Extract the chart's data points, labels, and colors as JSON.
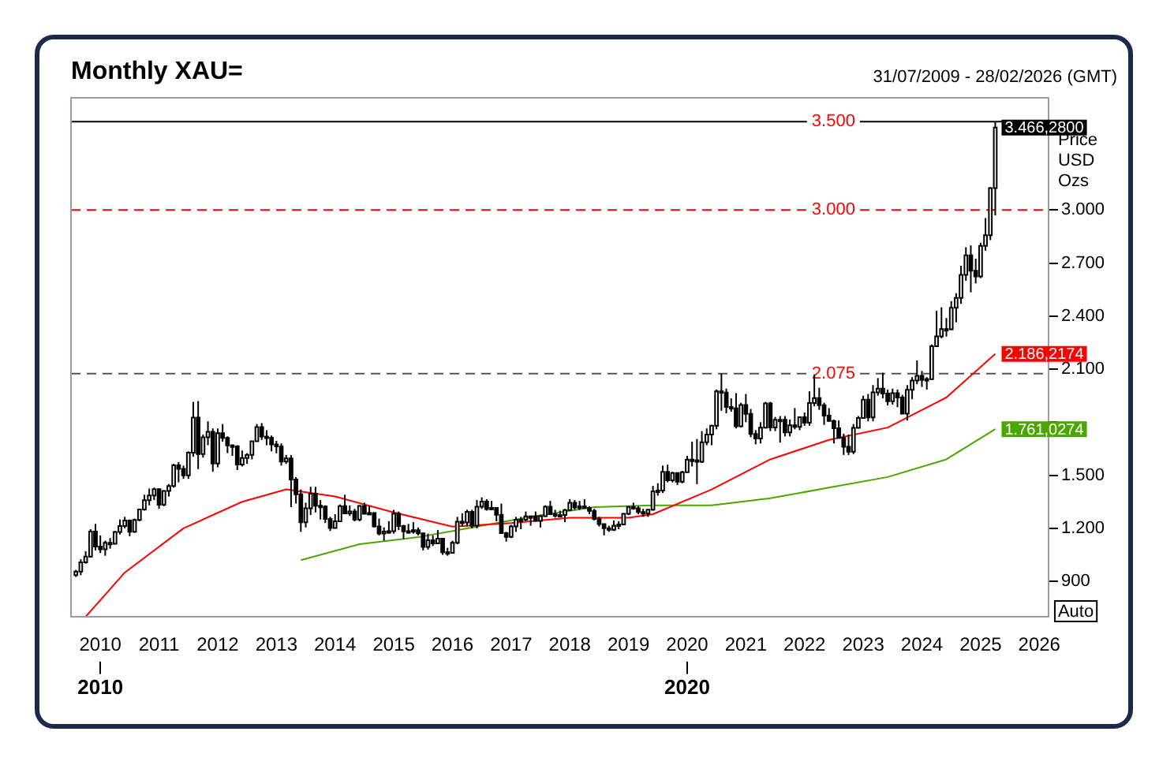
{
  "chart_data": {
    "type": "candlestick",
    "title": "Monthly XAU=",
    "subtitle": "31/07/2009 - 28/02/2026 (GMT)",
    "ylabel": "Price USD Ozs",
    "x": [
      "2009-08",
      "2009-09",
      "2009-10",
      "2009-11",
      "2009-12",
      "2010-01",
      "2010-02",
      "2010-03",
      "2010-04",
      "2010-05",
      "2010-06",
      "2010-07",
      "2010-08",
      "2010-09",
      "2010-10",
      "2010-11",
      "2010-12",
      "2011-01",
      "2011-02",
      "2011-03",
      "2011-04",
      "2011-05",
      "2011-06",
      "2011-07",
      "2011-08",
      "2011-09",
      "2011-10",
      "2011-11",
      "2011-12",
      "2012-01",
      "2012-02",
      "2012-03",
      "2012-04",
      "2012-05",
      "2012-06",
      "2012-07",
      "2012-08",
      "2012-09",
      "2012-10",
      "2012-11",
      "2012-12",
      "2013-01",
      "2013-02",
      "2013-03",
      "2013-04",
      "2013-05",
      "2013-06",
      "2013-07",
      "2013-08",
      "2013-09",
      "2013-10",
      "2013-11",
      "2013-12",
      "2014-01",
      "2014-02",
      "2014-03",
      "2014-04",
      "2014-05",
      "2014-06",
      "2014-07",
      "2014-08",
      "2014-09",
      "2014-10",
      "2014-11",
      "2014-12",
      "2015-01",
      "2015-02",
      "2015-03",
      "2015-04",
      "2015-05",
      "2015-06",
      "2015-07",
      "2015-08",
      "2015-09",
      "2015-10",
      "2015-11",
      "2015-12",
      "2016-01",
      "2016-02",
      "2016-03",
      "2016-04",
      "2016-05",
      "2016-06",
      "2016-07",
      "2016-08",
      "2016-09",
      "2016-10",
      "2016-11",
      "2016-12",
      "2017-01",
      "2017-02",
      "2017-03",
      "2017-04",
      "2017-05",
      "2017-06",
      "2017-07",
      "2017-08",
      "2017-09",
      "2017-10",
      "2017-11",
      "2017-12",
      "2018-01",
      "2018-02",
      "2018-03",
      "2018-04",
      "2018-05",
      "2018-06",
      "2018-07",
      "2018-08",
      "2018-09",
      "2018-10",
      "2018-11",
      "2018-12",
      "2019-01",
      "2019-02",
      "2019-03",
      "2019-04",
      "2019-05",
      "2019-06",
      "2019-07",
      "2019-08",
      "2019-09",
      "2019-10",
      "2019-11",
      "2019-12",
      "2020-01",
      "2020-02",
      "2020-03",
      "2020-04",
      "2020-05",
      "2020-06",
      "2020-07",
      "2020-08",
      "2020-09",
      "2020-10",
      "2020-11",
      "2020-12",
      "2021-01",
      "2021-02",
      "2021-03",
      "2021-04",
      "2021-05",
      "2021-06",
      "2021-07",
      "2021-08",
      "2021-09",
      "2021-10",
      "2021-11",
      "2021-12",
      "2022-01",
      "2022-02",
      "2022-03",
      "2022-04",
      "2022-05",
      "2022-06",
      "2022-07",
      "2022-08",
      "2022-09",
      "2022-10",
      "2022-11",
      "2022-12",
      "2023-01",
      "2023-02",
      "2023-03",
      "2023-04",
      "2023-05",
      "2023-06",
      "2023-07",
      "2023-08",
      "2023-09",
      "2023-10",
      "2023-11",
      "2023-12",
      "2024-01",
      "2024-02",
      "2024-03",
      "2024-04",
      "2024-05",
      "2024-06",
      "2024-07",
      "2024-08",
      "2024-09",
      "2024-10",
      "2024-11",
      "2024-12",
      "2025-01",
      "2025-02",
      "2025-03",
      "2025-04"
    ],
    "ohlc": [
      [
        935,
        965,
        925,
        955
      ],
      [
        955,
        1025,
        935,
        1008
      ],
      [
        1008,
        1070,
        1000,
        1040
      ],
      [
        1040,
        1195,
        1035,
        1182
      ],
      [
        1182,
        1225,
        1075,
        1097
      ],
      [
        1097,
        1160,
        1060,
        1081
      ],
      [
        1081,
        1130,
        1045,
        1118
      ],
      [
        1118,
        1145,
        1085,
        1113
      ],
      [
        1113,
        1185,
        1110,
        1180
      ],
      [
        1180,
        1250,
        1165,
        1213
      ],
      [
        1213,
        1265,
        1200,
        1244
      ],
      [
        1244,
        1250,
        1155,
        1181
      ],
      [
        1181,
        1255,
        1175,
        1248
      ],
      [
        1248,
        1310,
        1240,
        1307
      ],
      [
        1307,
        1390,
        1300,
        1359
      ],
      [
        1359,
        1425,
        1330,
        1386
      ],
      [
        1386,
        1430,
        1360,
        1421
      ],
      [
        1421,
        1425,
        1310,
        1333
      ],
      [
        1333,
        1415,
        1325,
        1411
      ],
      [
        1411,
        1450,
        1380,
        1439
      ],
      [
        1439,
        1565,
        1430,
        1556
      ],
      [
        1556,
        1575,
        1460,
        1536
      ],
      [
        1536,
        1555,
        1480,
        1500
      ],
      [
        1500,
        1635,
        1480,
        1628
      ],
      [
        1628,
        1915,
        1605,
        1826
      ],
      [
        1826,
        1920,
        1535,
        1620
      ],
      [
        1620,
        1730,
        1600,
        1715
      ],
      [
        1715,
        1805,
        1670,
        1746
      ],
      [
        1746,
        1765,
        1520,
        1566
      ],
      [
        1566,
        1765,
        1545,
        1738
      ],
      [
        1738,
        1790,
        1690,
        1711
      ],
      [
        1711,
        1720,
        1625,
        1669
      ],
      [
        1669,
        1675,
        1610,
        1664
      ],
      [
        1664,
        1670,
        1530,
        1561
      ],
      [
        1561,
        1640,
        1550,
        1598
      ],
      [
        1598,
        1625,
        1565,
        1615
      ],
      [
        1615,
        1695,
        1590,
        1692
      ],
      [
        1692,
        1790,
        1690,
        1773
      ],
      [
        1773,
        1795,
        1700,
        1719
      ],
      [
        1719,
        1755,
        1670,
        1713
      ],
      [
        1713,
        1725,
        1635,
        1675
      ],
      [
        1675,
        1695,
        1625,
        1664
      ],
      [
        1664,
        1680,
        1555,
        1578
      ],
      [
        1578,
        1615,
        1565,
        1596
      ],
      [
        1596,
        1615,
        1320,
        1476
      ],
      [
        1476,
        1490,
        1340,
        1393
      ],
      [
        1393,
        1420,
        1180,
        1234
      ],
      [
        1234,
        1345,
        1205,
        1313
      ],
      [
        1313,
        1435,
        1275,
        1396
      ],
      [
        1396,
        1435,
        1290,
        1328
      ],
      [
        1328,
        1360,
        1250,
        1323
      ],
      [
        1323,
        1330,
        1230,
        1253
      ],
      [
        1253,
        1265,
        1185,
        1202
      ],
      [
        1202,
        1280,
        1200,
        1240
      ],
      [
        1240,
        1335,
        1240,
        1326
      ],
      [
        1326,
        1390,
        1280,
        1284
      ],
      [
        1284,
        1330,
        1270,
        1296
      ],
      [
        1296,
        1310,
        1240,
        1250
      ],
      [
        1250,
        1330,
        1240,
        1327
      ],
      [
        1327,
        1345,
        1280,
        1282
      ],
      [
        1282,
        1325,
        1275,
        1287
      ],
      [
        1287,
        1290,
        1205,
        1211
      ],
      [
        1211,
        1255,
        1160,
        1171
      ],
      [
        1171,
        1205,
        1130,
        1182
      ],
      [
        1182,
        1240,
        1170,
        1184
      ],
      [
        1184,
        1305,
        1170,
        1283
      ],
      [
        1283,
        1295,
        1190,
        1213
      ],
      [
        1213,
        1220,
        1140,
        1183
      ],
      [
        1183,
        1225,
        1170,
        1184
      ],
      [
        1184,
        1235,
        1170,
        1190
      ],
      [
        1190,
        1205,
        1160,
        1172
      ],
      [
        1172,
        1175,
        1075,
        1095
      ],
      [
        1095,
        1170,
        1080,
        1133
      ],
      [
        1133,
        1160,
        1100,
        1115
      ],
      [
        1115,
        1190,
        1110,
        1142
      ],
      [
        1142,
        1145,
        1050,
        1065
      ],
      [
        1065,
        1090,
        1045,
        1061
      ],
      [
        1061,
        1130,
        1060,
        1118
      ],
      [
        1118,
        1265,
        1110,
        1238
      ],
      [
        1238,
        1285,
        1210,
        1233
      ],
      [
        1233,
        1305,
        1210,
        1293
      ],
      [
        1293,
        1305,
        1200,
        1215
      ],
      [
        1215,
        1360,
        1200,
        1322
      ],
      [
        1322,
        1375,
        1310,
        1351
      ],
      [
        1351,
        1365,
        1300,
        1309
      ],
      [
        1309,
        1355,
        1305,
        1316
      ],
      [
        1316,
        1320,
        1240,
        1277
      ],
      [
        1277,
        1340,
        1170,
        1173
      ],
      [
        1173,
        1180,
        1125,
        1152
      ],
      [
        1152,
        1220,
        1145,
        1211
      ],
      [
        1211,
        1265,
        1180,
        1249
      ],
      [
        1249,
        1265,
        1195,
        1249
      ],
      [
        1249,
        1295,
        1240,
        1268
      ],
      [
        1268,
        1270,
        1215,
        1268
      ],
      [
        1268,
        1295,
        1240,
        1242
      ],
      [
        1242,
        1275,
        1205,
        1269
      ],
      [
        1269,
        1330,
        1265,
        1322
      ],
      [
        1322,
        1355,
        1275,
        1280
      ],
      [
        1280,
        1305,
        1260,
        1271
      ],
      [
        1271,
        1300,
        1265,
        1275
      ],
      [
        1275,
        1310,
        1235,
        1303
      ],
      [
        1303,
        1365,
        1300,
        1345
      ],
      [
        1345,
        1360,
        1305,
        1318
      ],
      [
        1318,
        1355,
        1305,
        1325
      ],
      [
        1325,
        1365,
        1310,
        1315
      ],
      [
        1315,
        1325,
        1280,
        1299
      ],
      [
        1299,
        1310,
        1245,
        1253
      ],
      [
        1253,
        1265,
        1210,
        1224
      ],
      [
        1224,
        1225,
        1160,
        1201
      ],
      [
        1201,
        1215,
        1180,
        1192
      ],
      [
        1192,
        1245,
        1185,
        1215
      ],
      [
        1215,
        1240,
        1195,
        1222
      ],
      [
        1222,
        1285,
        1220,
        1282
      ],
      [
        1282,
        1325,
        1275,
        1321
      ],
      [
        1321,
        1345,
        1305,
        1313
      ],
      [
        1313,
        1325,
        1280,
        1292
      ],
      [
        1292,
        1310,
        1265,
        1284
      ],
      [
        1284,
        1305,
        1265,
        1305
      ],
      [
        1305,
        1440,
        1300,
        1409
      ],
      [
        1409,
        1455,
        1385,
        1414
      ],
      [
        1414,
        1555,
        1400,
        1520
      ],
      [
        1520,
        1560,
        1460,
        1472
      ],
      [
        1472,
        1520,
        1460,
        1513
      ],
      [
        1513,
        1515,
        1445,
        1464
      ],
      [
        1464,
        1525,
        1455,
        1517
      ],
      [
        1517,
        1610,
        1515,
        1589
      ],
      [
        1589,
        1690,
        1550,
        1585
      ],
      [
        1585,
        1705,
        1450,
        1577
      ],
      [
        1577,
        1750,
        1570,
        1687
      ],
      [
        1687,
        1765,
        1670,
        1730
      ],
      [
        1730,
        1785,
        1670,
        1781
      ],
      [
        1781,
        1985,
        1760,
        1975
      ],
      [
        1975,
        2075,
        1865,
        1968
      ],
      [
        1968,
        1990,
        1850,
        1886
      ],
      [
        1886,
        1935,
        1860,
        1879
      ],
      [
        1879,
        1965,
        1765,
        1777
      ],
      [
        1777,
        1910,
        1770,
        1898
      ],
      [
        1898,
        1960,
        1800,
        1848
      ],
      [
        1848,
        1875,
        1715,
        1734
      ],
      [
        1734,
        1755,
        1675,
        1708
      ],
      [
        1708,
        1800,
        1680,
        1769
      ],
      [
        1769,
        1915,
        1765,
        1907
      ],
      [
        1907,
        1915,
        1750,
        1770
      ],
      [
        1770,
        1830,
        1750,
        1814
      ],
      [
        1814,
        1835,
        1685,
        1814
      ],
      [
        1814,
        1835,
        1720,
        1743
      ],
      [
        1743,
        1815,
        1720,
        1783
      ],
      [
        1783,
        1880,
        1760,
        1774
      ],
      [
        1774,
        1830,
        1755,
        1829
      ],
      [
        1829,
        1855,
        1780,
        1797
      ],
      [
        1797,
        1975,
        1780,
        1909
      ],
      [
        1909,
        2070,
        1890,
        1937
      ],
      [
        1937,
        1995,
        1870,
        1897
      ],
      [
        1897,
        1910,
        1785,
        1837
      ],
      [
        1837,
        1880,
        1805,
        1807
      ],
      [
        1807,
        1815,
        1680,
        1766
      ],
      [
        1766,
        1810,
        1710,
        1711
      ],
      [
        1711,
        1735,
        1615,
        1661
      ],
      [
        1661,
        1730,
        1615,
        1633
      ],
      [
        1633,
        1790,
        1620,
        1768
      ],
      [
        1768,
        1835,
        1765,
        1824
      ],
      [
        1824,
        1950,
        1820,
        1928
      ],
      [
        1928,
        1960,
        1805,
        1827
      ],
      [
        1827,
        2010,
        1805,
        1969
      ],
      [
        1969,
        2050,
        1950,
        1990
      ],
      [
        1990,
        2080,
        1935,
        1962
      ],
      [
        1962,
        1985,
        1895,
        1919
      ],
      [
        1919,
        1990,
        1900,
        1965
      ],
      [
        1965,
        1985,
        1885,
        1940
      ],
      [
        1940,
        1955,
        1845,
        1849
      ],
      [
        1849,
        2010,
        1810,
        1983
      ],
      [
        1983,
        2055,
        1930,
        2036
      ],
      [
        2036,
        2150,
        2015,
        2063
      ],
      [
        2063,
        2090,
        2000,
        2039
      ],
      [
        2039,
        2055,
        1985,
        2044
      ],
      [
        2044,
        2240,
        2040,
        2230
      ],
      [
        2230,
        2430,
        2225,
        2286
      ],
      [
        2286,
        2450,
        2275,
        2327
      ],
      [
        2327,
        2390,
        2285,
        2326
      ],
      [
        2326,
        2485,
        2320,
        2447
      ],
      [
        2447,
        2530,
        2365,
        2503
      ],
      [
        2503,
        2685,
        2470,
        2634
      ],
      [
        2634,
        2790,
        2600,
        2744
      ],
      [
        2744,
        2800,
        2535,
        2657
      ],
      [
        2657,
        2725,
        2585,
        2625
      ],
      [
        2625,
        2815,
        2615,
        2798
      ],
      [
        2798,
        2955,
        2770,
        2858
      ],
      [
        2858,
        3130,
        2830,
        3124
      ],
      [
        3124,
        3500,
        2970,
        3466.28
      ]
    ],
    "series": [
      {
        "type": "line",
        "color": "#ff0000",
        "x": [
          "2009-10",
          "2010-06",
          "2011-06",
          "2012-06",
          "2013-03",
          "2014-01",
          "2015-01",
          "2016-01",
          "2017-01",
          "2018-01",
          "2019-01",
          "2019-06",
          "2020-06",
          "2021-06",
          "2022-06",
          "2023-06",
          "2024-06",
          "2025-04"
        ],
        "values": [
          700,
          950,
          1200,
          1350,
          1420,
          1380,
          1290,
          1210,
          1230,
          1260,
          1260,
          1280,
          1420,
          1590,
          1700,
          1770,
          1940,
          2186.2174
        ],
        "value_labels": [
          null,
          null,
          null,
          null,
          null,
          null,
          null,
          null,
          null,
          null,
          null,
          null,
          null,
          null,
          null,
          null,
          null,
          "2.186,2174"
        ]
      },
      {
        "type": "line",
        "color": "#4ca600",
        "x": [
          "2013-06",
          "2014-06",
          "2015-06",
          "2016-06",
          "2017-06",
          "2018-06",
          "2019-06",
          "2020-06",
          "2021-06",
          "2022-06",
          "2023-06",
          "2024-06",
          "2025-04"
        ],
        "values": [
          1020,
          1110,
          1150,
          1210,
          1270,
          1320,
          1330,
          1330,
          1370,
          1430,
          1490,
          1590,
          1761.0274
        ],
        "value_labels": [
          null,
          null,
          null,
          null,
          null,
          null,
          null,
          null,
          null,
          null,
          null,
          null,
          "1.761,0274"
        ]
      }
    ],
    "xlim": [
      "2009-07-01",
      "2026-02-28"
    ],
    "xticks": [
      "2010",
      "2011",
      "2012",
      "2013",
      "2014",
      "2015",
      "2016",
      "2017",
      "2018",
      "2019",
      "2020",
      "2021",
      "2022",
      "2023",
      "2024",
      "2025",
      "2026"
    ],
    "x2lim": [
      "2009-07-01",
      "2026-02-28"
    ],
    "x2ticks": [
      "2010",
      "2020"
    ],
    "ylim": [
      700,
      3635
    ],
    "yticks": [
      900,
      {
        "value": 1200,
        "label": "1.200"
      },
      {
        "value": 1500,
        "label": "1.500"
      },
      {
        "value": 1800,
        "label": null
      },
      {
        "value": 2100,
        "label": "2.100"
      },
      {
        "value": 2400,
        "label": "2.400"
      },
      {
        "value": 2700,
        "label": "2.700"
      },
      {
        "value": 3000,
        "label": "3.000"
      },
      {
        "value": 3500,
        "label": null
      }
    ],
    "ref_lines": [
      {
        "axis": "y",
        "value": 3500,
        "label": "3.500",
        "color": "#000000",
        "line_style": "solid"
      },
      {
        "axis": "y",
        "value": 3000,
        "label": "3.000",
        "color": "#ff0000",
        "line_style": "dashed"
      },
      {
        "axis": "y",
        "value": 2075,
        "label": "2.075",
        "color": "#555555",
        "line_style": "dashed"
      }
    ],
    "annotations": [
      {
        "text": "3.466,2800",
        "x": "2025-04",
        "y": 3466.28
      },
      "Auto"
    ]
  }
}
